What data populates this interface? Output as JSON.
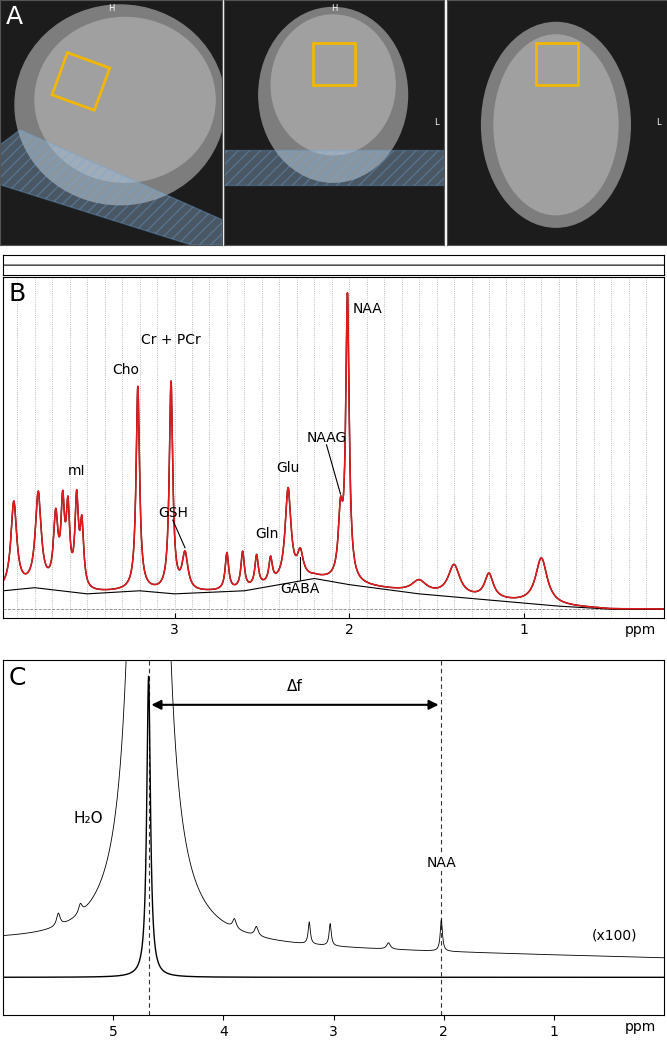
{
  "panel_a": {
    "panel_label": "A",
    "color": "#f2b705",
    "views": [
      {
        "top": "H"
      },
      {
        "top": "H",
        "right": "L"
      },
      {
        "right": "L"
      }
    ]
  },
  "chart_data": [
    {
      "type": "spectrum",
      "panel_label": "B",
      "xlim": [
        3.98,
        0.2
      ],
      "ylim": [
        -0.03,
        1.08
      ],
      "xticks": [
        3,
        2,
        1
      ],
      "xlabel": "ppm",
      "tick_labels": "x",
      "grid": true,
      "gridlines": [
        3.9,
        3.8,
        3.7,
        3.6,
        3.5,
        3.4,
        3.3,
        3.2,
        3.1,
        3.0,
        2.9,
        2.8,
        2.7,
        2.6,
        2.5,
        2.4,
        2.3,
        2.2,
        2.1,
        2.0,
        1.9,
        1.8,
        1.7,
        1.6,
        1.5,
        1.4,
        1.3,
        1.2,
        1.1,
        1.0,
        0.9,
        0.8,
        0.7,
        0.6,
        0.5,
        0.4,
        0.3
      ],
      "residual_ylim": [
        -0.05,
        0.05
      ],
      "series": [
        {
          "color": "#000000"
        },
        {
          "color": "#e31a1c"
        }
      ],
      "peaks": [
        {
          "ppm": 3.92,
          "height": 0.28,
          "width": 0.02
        },
        {
          "ppm": 3.78,
          "height": 0.3,
          "width": 0.02
        },
        {
          "ppm": 3.68,
          "height": 0.22,
          "width": 0.015
        },
        {
          "ppm": 3.64,
          "height": 0.25,
          "width": 0.012
        },
        {
          "ppm": 3.61,
          "height": 0.24,
          "width": 0.012
        },
        {
          "ppm": 3.56,
          "height": 0.28,
          "width": 0.012,
          "label": "mI"
        },
        {
          "ppm": 3.53,
          "height": 0.2,
          "width": 0.012
        },
        {
          "ppm": 3.21,
          "height": 0.66,
          "width": 0.012,
          "label": "Cho"
        },
        {
          "ppm": 3.02,
          "height": 0.68,
          "width": 0.012,
          "label": "Cr + PCr"
        },
        {
          "ppm": 2.94,
          "height": 0.12,
          "width": 0.02,
          "label": "GSH"
        },
        {
          "ppm": 2.7,
          "height": 0.12,
          "width": 0.012
        },
        {
          "ppm": 2.61,
          "height": 0.12,
          "width": 0.012
        },
        {
          "ppm": 2.53,
          "height": 0.1,
          "width": 0.012
        },
        {
          "ppm": 2.45,
          "height": 0.08,
          "width": 0.012,
          "label": "Gln"
        },
        {
          "ppm": 2.35,
          "height": 0.3,
          "width": 0.02,
          "label": "Glu"
        },
        {
          "ppm": 2.28,
          "height": 0.08,
          "width": 0.02,
          "label": "GABA"
        },
        {
          "ppm": 2.05,
          "height": 0.2,
          "width": 0.015,
          "label": "NAAG"
        },
        {
          "ppm": 2.01,
          "height": 0.92,
          "width": 0.012,
          "label": "NAA"
        },
        {
          "ppm": 1.6,
          "height": 0.04,
          "width": 0.05
        },
        {
          "ppm": 1.4,
          "height": 0.1,
          "width": 0.04
        },
        {
          "ppm": 1.2,
          "height": 0.08,
          "width": 0.03
        },
        {
          "ppm": 0.9,
          "height": 0.15,
          "width": 0.04
        }
      ],
      "baseline": {
        "ppm": [
          0.2,
          0.5,
          0.8,
          1.2,
          1.6,
          2.0,
          2.2,
          2.6,
          3.0,
          3.2,
          3.5,
          3.8,
          3.98
        ],
        "values": [
          0.0,
          0.0,
          0.01,
          0.03,
          0.05,
          0.08,
          0.1,
          0.06,
          0.05,
          0.06,
          0.05,
          0.07,
          0.06
        ]
      }
    },
    {
      "type": "spectrum",
      "panel_label": "C",
      "xlim": [
        6.0,
        0.0
      ],
      "ylim": [
        -0.12,
        1.0
      ],
      "xticks": [
        5,
        4,
        3,
        2,
        1
      ],
      "xlabel": "ppm",
      "tick_labels": "x",
      "traces": [
        {
          "color": "#000000",
          "peaks": [
            {
              "ppm": 4.68,
              "height": 0.95,
              "width": 0.02
            }
          ],
          "baseline": {
            "ppm": [
              0.0,
              6.0
            ],
            "values": [
              0.0,
              0.0
            ]
          }
        },
        {
          "color": "#000000",
          "label": "(x100)",
          "peaks": [
            {
              "ppm": 4.68,
              "height": 95,
              "width": 0.02
            },
            {
              "ppm": 5.5,
              "height": 0.04,
              "width": 0.02
            },
            {
              "ppm": 5.3,
              "height": 0.03,
              "width": 0.02
            },
            {
              "ppm": 3.9,
              "height": 0.03,
              "width": 0.02
            },
            {
              "ppm": 3.7,
              "height": 0.03,
              "width": 0.02
            },
            {
              "ppm": 3.22,
              "height": 0.07,
              "width": 0.012
            },
            {
              "ppm": 3.03,
              "height": 0.07,
              "width": 0.012
            },
            {
              "ppm": 2.5,
              "height": 0.02,
              "width": 0.02
            },
            {
              "ppm": 2.02,
              "height": 0.1,
              "width": 0.012
            }
          ],
          "baseline": {
            "ppm": [
              0.0,
              6.0
            ],
            "values": [
              0.06,
              0.11
            ]
          }
        }
      ],
      "annotations": [
        {
          "text": "H₂O",
          "ppm": 4.68
        },
        {
          "text": "NAA",
          "ppm": 2.02
        }
      ],
      "arrow": {
        "text": "Δf",
        "from": 4.68,
        "to": 2.02
      }
    }
  ]
}
